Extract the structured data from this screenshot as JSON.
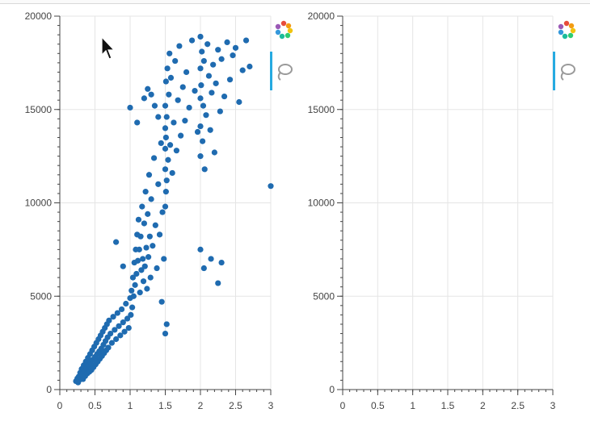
{
  "colors": {
    "point": "#1f6bb0",
    "axis": "#444444",
    "grid": "#e5e5e5",
    "tool_active": "#26aae1"
  },
  "toolbar": {
    "tools": [
      {
        "name": "bokeh-logo-icon",
        "active": false
      },
      {
        "name": "lasso-select-icon",
        "active": true
      }
    ]
  },
  "chart_data": [
    {
      "type": "scatter",
      "title": "",
      "xlabel": "",
      "ylabel": "",
      "xlim": [
        0,
        3
      ],
      "ylim": [
        0,
        20000
      ],
      "xticks": [
        0,
        0.5,
        1,
        1.5,
        2,
        2.5,
        3
      ],
      "xtick_labels": [
        "0",
        "0.5",
        "1",
        "1.5",
        "2",
        "2.5",
        "3"
      ],
      "yticks": [
        0,
        5000,
        10000,
        15000,
        20000
      ],
      "ytick_labels": [
        "0",
        "5000",
        "10000",
        "15000",
        "20000"
      ],
      "grid": true,
      "series": [
        {
          "color": "#1f6bb0",
          "points": [
            [
              0.23,
              450
            ],
            [
              0.25,
              600
            ],
            [
              0.26,
              380
            ],
            [
              0.27,
              700
            ],
            [
              0.28,
              520
            ],
            [
              0.29,
              900
            ],
            [
              0.3,
              640
            ],
            [
              0.31,
              1100
            ],
            [
              0.32,
              820
            ],
            [
              0.33,
              560
            ],
            [
              0.34,
              1300
            ],
            [
              0.35,
              980
            ],
            [
              0.36,
              720
            ],
            [
              0.37,
              1500
            ],
            [
              0.38,
              1150
            ],
            [
              0.39,
              860
            ],
            [
              0.4,
              1700
            ],
            [
              0.41,
              1300
            ],
            [
              0.42,
              950
            ],
            [
              0.43,
              1900
            ],
            [
              0.44,
              1450
            ],
            [
              0.45,
              1050
            ],
            [
              0.46,
              2100
            ],
            [
              0.47,
              1600
            ],
            [
              0.48,
              1200
            ],
            [
              0.49,
              2300
            ],
            [
              0.5,
              1750
            ],
            [
              0.51,
              1350
            ],
            [
              0.52,
              2500
            ],
            [
              0.53,
              1900
            ],
            [
              0.54,
              1500
            ],
            [
              0.55,
              2700
            ],
            [
              0.56,
              2050
            ],
            [
              0.57,
              1650
            ],
            [
              0.58,
              2900
            ],
            [
              0.59,
              2200
            ],
            [
              0.6,
              1800
            ],
            [
              0.61,
              3100
            ],
            [
              0.62,
              2400
            ],
            [
              0.63,
              1950
            ],
            [
              0.64,
              3300
            ],
            [
              0.65,
              2600
            ],
            [
              0.66,
              2100
            ],
            [
              0.67,
              3500
            ],
            [
              0.68,
              2800
            ],
            [
              0.69,
              2250
            ],
            [
              0.7,
              3700
            ],
            [
              0.72,
              3000
            ],
            [
              0.74,
              2500
            ],
            [
              0.76,
              3900
            ],
            [
              0.78,
              3200
            ],
            [
              0.8,
              2700
            ],
            [
              0.82,
              4100
            ],
            [
              0.84,
              3400
            ],
            [
              0.86,
              2900
            ],
            [
              0.88,
              4300
            ],
            [
              0.9,
              3600
            ],
            [
              0.92,
              3100
            ],
            [
              0.94,
              4600
            ],
            [
              0.96,
              3800
            ],
            [
              0.98,
              3300
            ],
            [
              1.0,
              4900
            ],
            [
              1.01,
              4000
            ],
            [
              1.02,
              5300
            ],
            [
              1.03,
              4400
            ],
            [
              1.04,
              6000
            ],
            [
              1.05,
              5000
            ],
            [
              1.06,
              6800
            ],
            [
              1.07,
              5600
            ],
            [
              1.08,
              7500
            ],
            [
              1.09,
              6200
            ],
            [
              1.1,
              8300
            ],
            [
              1.11,
              6900
            ],
            [
              1.12,
              9100
            ],
            [
              1.13,
              7500
            ],
            [
              1.14,
              5200
            ],
            [
              1.15,
              8200
            ],
            [
              1.16,
              6400
            ],
            [
              1.17,
              9800
            ],
            [
              1.18,
              7000
            ],
            [
              1.19,
              5800
            ],
            [
              1.2,
              8900
            ],
            [
              1.21,
              6600
            ],
            [
              1.22,
              10600
            ],
            [
              1.23,
              7600
            ],
            [
              1.24,
              5400
            ],
            [
              1.25,
              9400
            ],
            [
              1.26,
              7100
            ],
            [
              1.27,
              11500
            ],
            [
              1.28,
              8200
            ],
            [
              1.29,
              6000
            ],
            [
              1.3,
              10200
            ],
            [
              1.32,
              7700
            ],
            [
              1.34,
              12400
            ],
            [
              1.36,
              8800
            ],
            [
              1.38,
              6500
            ],
            [
              1.4,
              11000
            ],
            [
              1.42,
              8300
            ],
            [
              1.44,
              13200
            ],
            [
              1.46,
              9500
            ],
            [
              1.48,
              7000
            ],
            [
              1.5,
              14000
            ],
            [
              1.5,
              11800
            ],
            [
              1.5,
              9800
            ],
            [
              1.5,
              12900
            ],
            [
              1.5,
              15200
            ],
            [
              1.51,
              10600
            ],
            [
              1.51,
              13500
            ],
            [
              1.51,
              16500
            ],
            [
              1.52,
              11200
            ],
            [
              1.52,
              14600
            ],
            [
              1.53,
              17200
            ],
            [
              1.54,
              12300
            ],
            [
              1.55,
              15800
            ],
            [
              1.56,
              18000
            ],
            [
              1.57,
              13100
            ],
            [
              1.58,
              16700
            ],
            [
              1.6,
              11600
            ],
            [
              1.62,
              14300
            ],
            [
              1.64,
              17600
            ],
            [
              1.66,
              12800
            ],
            [
              1.68,
              15500
            ],
            [
              1.7,
              18400
            ],
            [
              1.72,
              13600
            ],
            [
              1.75,
              16200
            ],
            [
              1.78,
              14400
            ],
            [
              1.8,
              17000
            ],
            [
              1.84,
              15100
            ],
            [
              1.88,
              18700
            ],
            [
              1.92,
              16000
            ],
            [
              1.96,
              13800
            ],
            [
              2.0,
              18900
            ],
            [
              2.0,
              17200
            ],
            [
              2.0,
              15600
            ],
            [
              2.0,
              14100
            ],
            [
              2.0,
              12500
            ],
            [
              2.01,
              16300
            ],
            [
              2.02,
              18100
            ],
            [
              2.03,
              13300
            ],
            [
              2.04,
              15200
            ],
            [
              2.05,
              17600
            ],
            [
              2.06,
              11800
            ],
            [
              2.08,
              14700
            ],
            [
              2.1,
              18500
            ],
            [
              2.12,
              16800
            ],
            [
              2.14,
              13900
            ],
            [
              2.16,
              15900
            ],
            [
              2.18,
              17400
            ],
            [
              2.2,
              12700
            ],
            [
              2.22,
              16400
            ],
            [
              2.25,
              18200
            ],
            [
              2.28,
              14900
            ],
            [
              2.3,
              17700
            ],
            [
              2.34,
              15700
            ],
            [
              2.38,
              18600
            ],
            [
              2.42,
              16600
            ],
            [
              2.46,
              17900
            ],
            [
              2.5,
              18300
            ],
            [
              2.55,
              15400
            ],
            [
              2.6,
              17100
            ],
            [
              2.65,
              18700
            ],
            [
              2.7,
              17300
            ],
            [
              3.0,
              10900
            ],
            [
              0.8,
              7900
            ],
            [
              0.9,
              6600
            ],
            [
              1.0,
              15100
            ],
            [
              1.1,
              14300
            ],
            [
              1.2,
              15600
            ],
            [
              1.25,
              16100
            ],
            [
              1.3,
              15800
            ],
            [
              1.35,
              15200
            ],
            [
              1.4,
              14600
            ],
            [
              1.5,
              3000
            ],
            [
              1.52,
              3500
            ],
            [
              2.0,
              7500
            ],
            [
              2.05,
              6500
            ],
            [
              2.15,
              7000
            ],
            [
              2.25,
              5700
            ],
            [
              2.3,
              6800
            ],
            [
              1.45,
              4700
            ]
          ]
        }
      ]
    },
    {
      "type": "scatter",
      "title": "",
      "xlabel": "",
      "ylabel": "",
      "xlim": [
        0,
        3
      ],
      "ylim": [
        0,
        20000
      ],
      "xticks": [
        0,
        0.5,
        1,
        1.5,
        2,
        2.5,
        3
      ],
      "xtick_labels": [
        "0",
        "0.5",
        "1",
        "1.5",
        "2",
        "2.5",
        "3"
      ],
      "yticks": [
        0,
        5000,
        10000,
        15000,
        20000
      ],
      "ytick_labels": [
        "0",
        "5000",
        "10000",
        "15000",
        "20000"
      ],
      "grid": true,
      "series": [
        {
          "color": "#1f6bb0",
          "points": []
        }
      ]
    }
  ]
}
